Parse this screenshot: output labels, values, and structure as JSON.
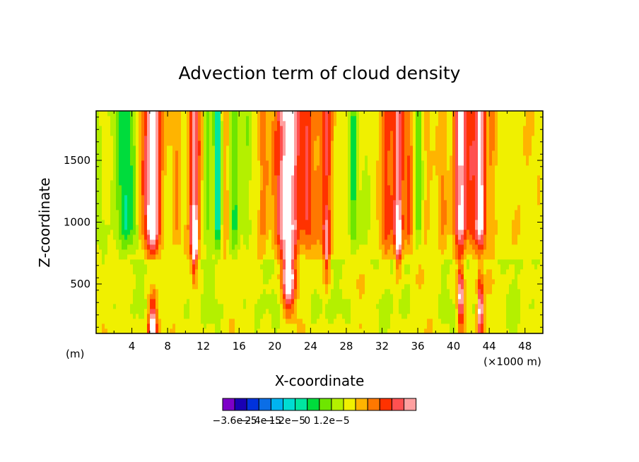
{
  "chart_data": {
    "type": "heatmap",
    "title": "Advection term of cloud density",
    "xlabel": "X-coordinate",
    "ylabel": "Z-coordinate",
    "x_unit_left": "(m)",
    "x_unit_right": "(×1000 m)",
    "xlim": [
      0,
      50
    ],
    "ylim": [
      100,
      1900
    ],
    "x_ticks": [
      4,
      8,
      12,
      16,
      20,
      24,
      28,
      32,
      36,
      40,
      44,
      48
    ],
    "y_ticks": [
      500,
      1000,
      1500
    ],
    "colorbar": {
      "colors": [
        "#7d00c8",
        "#1a00b4",
        "#0032dc",
        "#0b6ee6",
        "#00b4f0",
        "#00dcd2",
        "#00e6a0",
        "#00dc3c",
        "#6ee600",
        "#b4f000",
        "#f0f000",
        "#ffb400",
        "#ff7800",
        "#ff3200",
        "#ff5050",
        "#ffa0a0"
      ],
      "labels": [
        "−3.6e−5",
        "−2.4e−5",
        "−1.2e−5",
        "0",
        "1.2e−5"
      ]
    },
    "profiles": [
      [
        0.0,
        -1.0,
        0.8,
        0.3
      ],
      [
        3.3,
        -3.3,
        1.2,
        1.0
      ],
      [
        5.0,
        1.0,
        0.4,
        0.2
      ],
      [
        6.3,
        7.0,
        0.9,
        0.2
      ],
      [
        9.0,
        1.5,
        0.5,
        0.7
      ],
      [
        11.0,
        5.0,
        0.6,
        0.85
      ],
      [
        12.5,
        -1.8,
        0.4,
        0.9
      ],
      [
        13.6,
        -4.5,
        0.4,
        1.25
      ],
      [
        14.5,
        1.2,
        0.4,
        0.9
      ],
      [
        15.5,
        -2.5,
        0.5,
        1.0
      ],
      [
        16.8,
        -1.2,
        0.6,
        0.8
      ],
      [
        18.7,
        2.0,
        0.5,
        1.0
      ],
      [
        21.5,
        6.5,
        1.4,
        0.6
      ],
      [
        23.7,
        3.0,
        0.6,
        0.7
      ],
      [
        24.8,
        1.5,
        0.6,
        0.9
      ],
      [
        25.8,
        3.5,
        0.6,
        0.8
      ],
      [
        28.8,
        -2.8,
        0.5,
        1.0
      ],
      [
        30.2,
        -0.8,
        0.5,
        0.9
      ],
      [
        32.5,
        3.0,
        0.7,
        0.9
      ],
      [
        33.8,
        4.5,
        0.6,
        0.9
      ],
      [
        35.0,
        2.5,
        0.5,
        1.0
      ],
      [
        36.1,
        -2.0,
        0.4,
        1.1
      ],
      [
        37.0,
        0.8,
        0.5,
        0.9
      ],
      [
        38.8,
        1.5,
        0.5,
        1.0
      ],
      [
        40.8,
        6.0,
        0.7,
        0.45
      ],
      [
        42.0,
        2.5,
        0.5,
        1.0
      ],
      [
        43.0,
        6.0,
        0.6,
        0.35
      ],
      [
        44.3,
        1.5,
        0.5,
        1.0
      ],
      [
        48.0,
        0.4,
        1.5,
        1.3
      ]
    ]
  }
}
